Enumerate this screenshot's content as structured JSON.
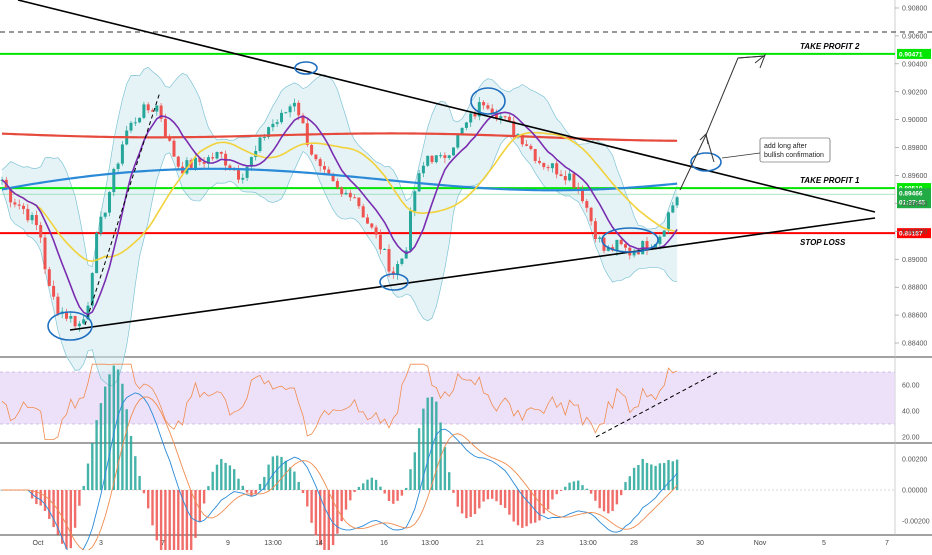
{
  "chart_data": [
    {
      "type": "candlestick",
      "panel": "price",
      "ylim": [
        0.883,
        0.909
      ],
      "ticks": [
        "0.90800",
        "0.90600",
        "0.90400",
        "0.90200",
        "0.90000",
        "0.89800",
        "0.89600",
        "0.89400",
        "0.89200",
        "0.89000",
        "0.88800",
        "0.88600",
        "0.88400"
      ],
      "levels": [
        {
          "label": "TAKE PROFIT 2",
          "price_tag": "0.90471",
          "value": 0.90471,
          "color": "#00e600"
        },
        {
          "label": "TAKE PROFIT 1",
          "price_tag": "0.89510",
          "value": 0.8951,
          "color": "#00e600"
        },
        {
          "label": "STOP LOSS",
          "price_tag": "0.89187",
          "value": 0.89187,
          "color": "#ff0000"
        }
      ],
      "current_price": {
        "price_tag": "0.89466",
        "countdown": "01:27:45",
        "value": 0.89466,
        "color": "#22aa44"
      },
      "note": "add long after bullish confirmation",
      "bullish_color": "#26a69a",
      "bearish_color": "#ef5350"
    },
    {
      "type": "line",
      "panel": "rsi",
      "ylim": [
        15,
        80
      ],
      "ticks": [
        "60.00",
        "40.00",
        "20.00"
      ],
      "band": [
        30,
        70
      ],
      "band_color": "#e8d9f7",
      "line_color": "#f08c50"
    },
    {
      "type": "histogram",
      "panel": "macd",
      "ylim": [
        -0.0024,
        0.0026
      ],
      "ticks": [
        "0.00200",
        "0.00000",
        "-0.00200"
      ]
    }
  ],
  "x_axis": {
    "labels": [
      "Oct",
      "3",
      "7",
      "9",
      "13:00",
      "14",
      "16",
      "13:00",
      "21",
      "23",
      "13:00",
      "28",
      "30",
      "Nov",
      "5",
      "7"
    ]
  }
}
